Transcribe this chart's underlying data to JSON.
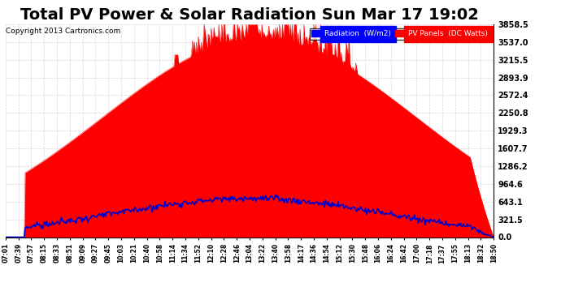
{
  "title": "Total PV Power & Solar Radiation Sun Mar 17 19:02",
  "copyright": "Copyright 2013 Cartronics.com",
  "legend_radiation": "Radiation  (W/m2)",
  "legend_pv": "PV Panels  (DC Watts)",
  "yticks": [
    0.0,
    321.5,
    643.1,
    964.6,
    1286.2,
    1607.7,
    1929.3,
    2250.8,
    2572.4,
    2893.9,
    3215.5,
    3537.0,
    3858.5
  ],
  "ymax": 3858.5,
  "ymin": 0.0,
  "bg_color": "#ffffff",
  "plot_bg_color": "#ffffff",
  "grid_color": "#cccccc",
  "pv_color": "#ff0000",
  "radiation_color": "#0000cc",
  "title_fontsize": 14,
  "xtick_labels": [
    "07:01",
    "07:39",
    "07:57",
    "08:15",
    "08:33",
    "08:51",
    "09:09",
    "09:27",
    "09:45",
    "10:03",
    "10:21",
    "10:40",
    "10:58",
    "11:14",
    "11:34",
    "11:52",
    "12:10",
    "12:28",
    "12:46",
    "13:04",
    "13:22",
    "13:40",
    "13:58",
    "14:17",
    "14:36",
    "14:54",
    "15:12",
    "15:30",
    "15:48",
    "16:06",
    "16:24",
    "16:42",
    "17:00",
    "17:18",
    "17:37",
    "17:55",
    "18:13",
    "18:32",
    "18:50"
  ]
}
